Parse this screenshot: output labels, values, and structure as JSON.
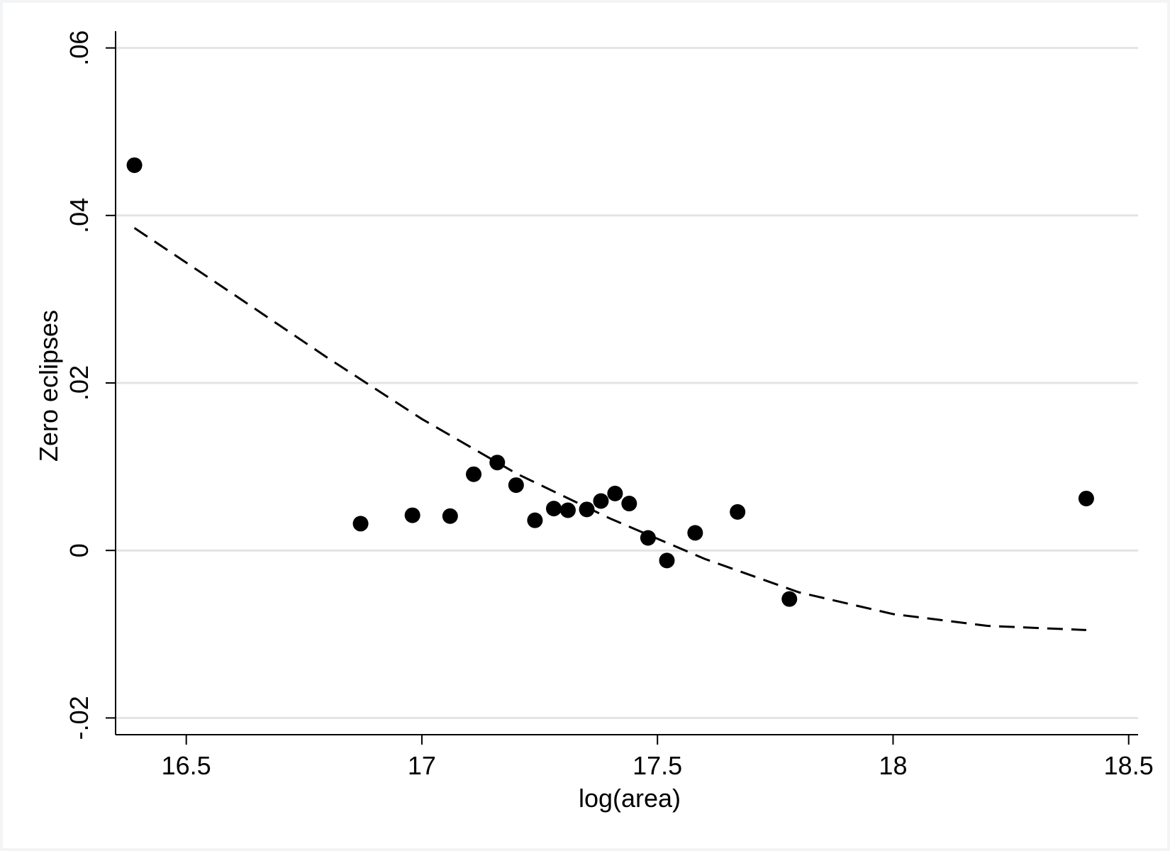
{
  "chart_data": {
    "type": "scatter",
    "xlabel": "log(area)",
    "ylabel": "Zero eclipses",
    "xlim": [
      16.35,
      18.52
    ],
    "ylim": [
      -0.022,
      0.062
    ],
    "x_ticks": [
      16.5,
      17,
      17.5,
      18,
      18.5
    ],
    "x_tick_labels": [
      "16.5",
      "17",
      "17.5",
      "18",
      "18.5"
    ],
    "y_ticks": [
      -0.02,
      0,
      0.02,
      0.04,
      0.06
    ],
    "y_tick_labels": [
      "-.02",
      "0",
      ".02",
      ".04",
      ".06"
    ],
    "grid": "horizontal",
    "legend": "none",
    "series": [
      {
        "type": "scatter",
        "points": [
          {
            "x": 16.39,
            "y": 0.046
          },
          {
            "x": 16.87,
            "y": 0.0032
          },
          {
            "x": 16.98,
            "y": 0.0042
          },
          {
            "x": 17.06,
            "y": 0.0041
          },
          {
            "x": 17.11,
            "y": 0.0091
          },
          {
            "x": 17.16,
            "y": 0.0105
          },
          {
            "x": 17.2,
            "y": 0.0078
          },
          {
            "x": 17.24,
            "y": 0.0036
          },
          {
            "x": 17.28,
            "y": 0.005
          },
          {
            "x": 17.31,
            "y": 0.0048
          },
          {
            "x": 17.35,
            "y": 0.0049
          },
          {
            "x": 17.38,
            "y": 0.0059
          },
          {
            "x": 17.41,
            "y": 0.0068
          },
          {
            "x": 17.44,
            "y": 0.0056
          },
          {
            "x": 17.48,
            "y": 0.0015
          },
          {
            "x": 17.52,
            "y": -0.0012
          },
          {
            "x": 17.58,
            "y": 0.0021
          },
          {
            "x": 17.67,
            "y": 0.0046
          },
          {
            "x": 17.78,
            "y": -0.0058
          },
          {
            "x": 18.41,
            "y": 0.0062
          }
        ]
      },
      {
        "type": "line",
        "style": "dashed",
        "points": [
          {
            "x": 16.39,
            "y": 0.0385
          },
          {
            "x": 16.6,
            "y": 0.0306
          },
          {
            "x": 16.8,
            "y": 0.023
          },
          {
            "x": 17.0,
            "y": 0.0157
          },
          {
            "x": 17.2,
            "y": 0.0092
          },
          {
            "x": 17.4,
            "y": 0.0038
          },
          {
            "x": 17.6,
            "y": -0.001
          },
          {
            "x": 17.8,
            "y": -0.005
          },
          {
            "x": 18.0,
            "y": -0.0076
          },
          {
            "x": 18.2,
            "y": -0.009
          },
          {
            "x": 18.41,
            "y": -0.0095
          }
        ]
      }
    ],
    "colors": {
      "marker": "#000000",
      "fit_line": "#000000",
      "gridline": "#e4e4e4",
      "axis": "#000000",
      "background": "#ffffff",
      "outer_background": "#f3f4f6"
    }
  }
}
